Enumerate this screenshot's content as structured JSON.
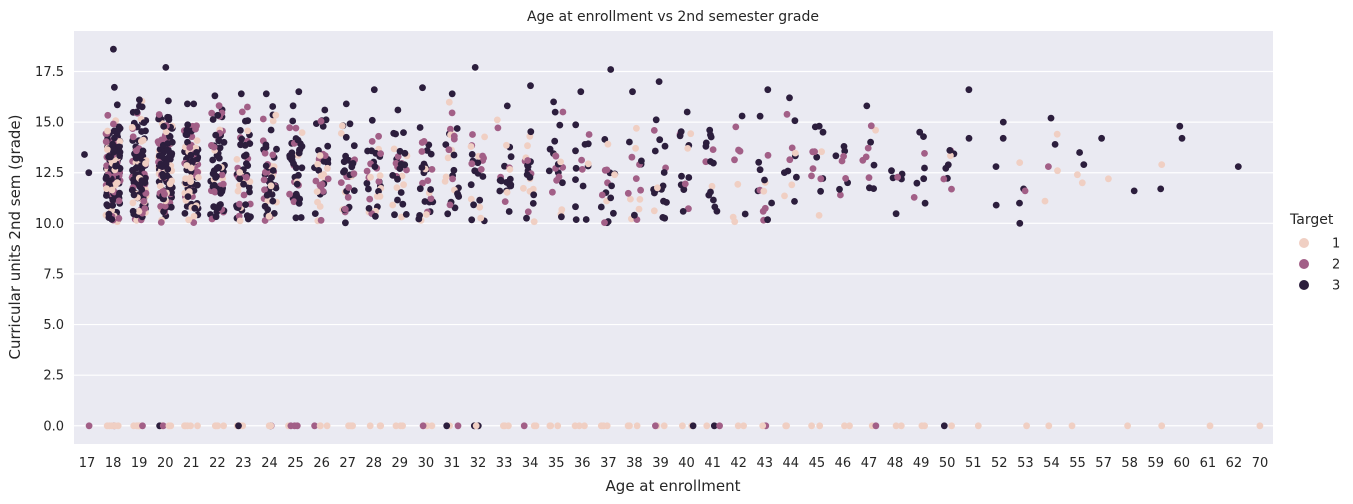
{
  "chart_data": {
    "type": "scatter",
    "subtype": "strip",
    "title": "Age at enrollment vs 2nd semester grade",
    "xlabel": "Age at enrollment",
    "ylabel": "Curricular units 2nd sem (grade)",
    "ylim": [
      -0.9,
      19.5
    ],
    "yticks": [
      "0.0",
      "2.5",
      "5.0",
      "7.5",
      "10.0",
      "12.5",
      "15.0",
      "17.5"
    ],
    "ytick_values": [
      0,
      2.5,
      5,
      7.5,
      10,
      12.5,
      15,
      17.5
    ],
    "categories": [
      "17",
      "18",
      "19",
      "20",
      "21",
      "22",
      "23",
      "24",
      "25",
      "26",
      "27",
      "28",
      "29",
      "30",
      "31",
      "32",
      "33",
      "34",
      "35",
      "36",
      "37",
      "38",
      "39",
      "40",
      "41",
      "42",
      "43",
      "44",
      "45",
      "46",
      "47",
      "48",
      "49",
      "50",
      "51",
      "52",
      "53",
      "54",
      "55",
      "57",
      "58",
      "59",
      "60",
      "61",
      "62",
      "70"
    ],
    "grid": true,
    "legend": {
      "title": "Target",
      "placement": "right",
      "entries": [
        "1",
        "2",
        "3"
      ]
    },
    "colors": {
      "1": "#f0cfc3",
      "2": "#a25f87",
      "3": "#2c1e3d",
      "background": "#eaeaf2",
      "grid": "#ffffff"
    },
    "series_note": "dense strip of points per age category; values summarized below",
    "points": {
      "17": [
        [
          2,
          0
        ],
        [
          3,
          13.4
        ],
        [
          3,
          12.5
        ]
      ],
      "51": [
        [
          3,
          16.6
        ],
        [
          3,
          14.2
        ],
        [
          1,
          0
        ]
      ],
      "52": [
        [
          3,
          15.0
        ],
        [
          3,
          14.2
        ],
        [
          3,
          12.8
        ],
        [
          3,
          10.9
        ]
      ],
      "53": [
        [
          1,
          13.0
        ],
        [
          3,
          11.7
        ],
        [
          2,
          11.6
        ],
        [
          3,
          11.0
        ],
        [
          3,
          10.0
        ],
        [
          1,
          0
        ]
      ],
      "54": [
        [
          3,
          15.2
        ],
        [
          1,
          14.4
        ],
        [
          3,
          13.9
        ],
        [
          2,
          12.8
        ],
        [
          1,
          12.6
        ],
        [
          1,
          11.1
        ],
        [
          1,
          0
        ]
      ],
      "55": [
        [
          3,
          13.5
        ],
        [
          3,
          12.9
        ],
        [
          1,
          12.4
        ],
        [
          1,
          12.0
        ],
        [
          1,
          0
        ]
      ],
      "57": [
        [
          3,
          14.2
        ],
        [
          1,
          12.2
        ]
      ],
      "58": [
        [
          3,
          11.6
        ],
        [
          1,
          0
        ]
      ],
      "59": [
        [
          1,
          12.9
        ],
        [
          3,
          11.7
        ],
        [
          1,
          0
        ]
      ],
      "60": [
        [
          3,
          14.8
        ],
        [
          3,
          14.2
        ]
      ],
      "61": [
        [
          1,
          0
        ]
      ],
      "62": [
        [
          3,
          12.8
        ]
      ],
      "70": [
        [
          1,
          0
        ]
      ]
    }
  }
}
